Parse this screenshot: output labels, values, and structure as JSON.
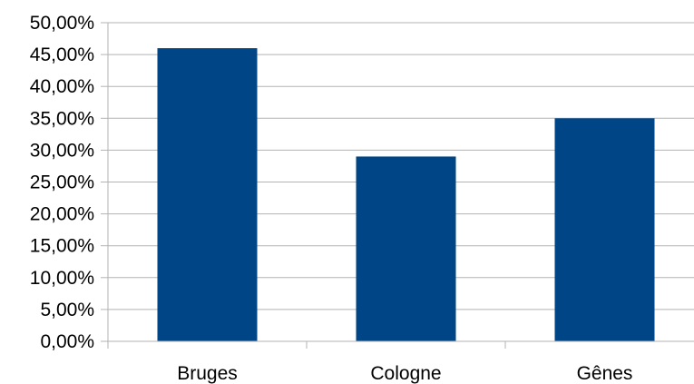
{
  "chart_data": {
    "type": "bar",
    "title": "",
    "xlabel": "",
    "ylabel": "",
    "categories": [
      "Bruges",
      "Cologne",
      "Gênes"
    ],
    "values": [
      46.0,
      29.0,
      35.0
    ],
    "ylim": [
      0,
      50
    ],
    "y_tick_step": 5,
    "y_tick_labels": [
      "0,00%",
      "5,00%",
      "10,00%",
      "15,00%",
      "20,00%",
      "25,00%",
      "30,00%",
      "35,00%",
      "40,00%",
      "45,00%",
      "50,00%"
    ],
    "grid": true,
    "legend": "none",
    "bar_color": "#004586",
    "grid_color": "#b3b3b3"
  }
}
